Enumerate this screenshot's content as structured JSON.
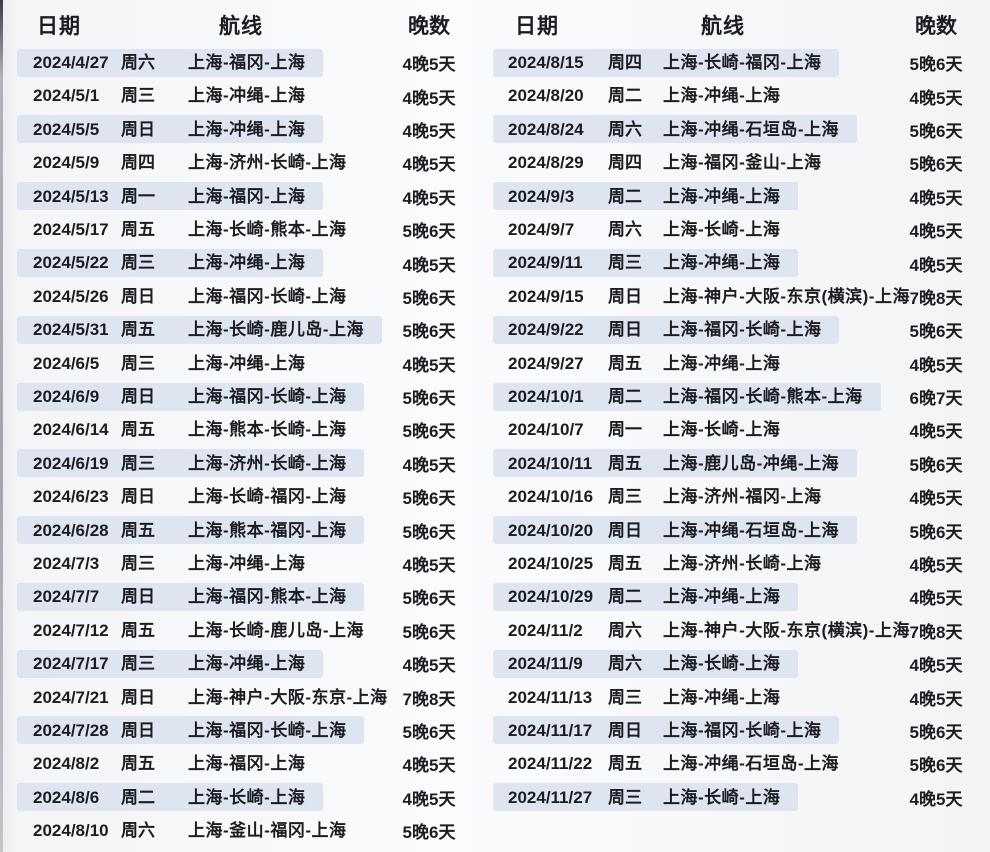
{
  "theme": {
    "background": "#f5f6f8",
    "row_highlight": "#dee4f0",
    "text": "#1c1d22"
  },
  "tables": {
    "left": {
      "headers": {
        "date": "日期",
        "route": "航线",
        "nights": "晚数"
      },
      "rows": [
        {
          "date": "2024/4/27",
          "weekday": "周六",
          "route": "上海-福冈-上海",
          "nights": "4晚5天"
        },
        {
          "date": "2024/5/1",
          "weekday": "周三",
          "route": "上海-冲绳-上海",
          "nights": "4晚5天"
        },
        {
          "date": "2024/5/5",
          "weekday": "周日",
          "route": "上海-冲绳-上海",
          "nights": "4晚5天"
        },
        {
          "date": "2024/5/9",
          "weekday": "周四",
          "route": "上海-济州-长崎-上海",
          "nights": "4晚5天"
        },
        {
          "date": "2024/5/13",
          "weekday": "周一",
          "route": "上海-福冈-上海",
          "nights": "4晚5天"
        },
        {
          "date": "2024/5/17",
          "weekday": "周五",
          "route": "上海-长崎-熊本-上海",
          "nights": "5晚6天"
        },
        {
          "date": "2024/5/22",
          "weekday": "周三",
          "route": "上海-冲绳-上海",
          "nights": "4晚5天"
        },
        {
          "date": "2024/5/26",
          "weekday": "周日",
          "route": "上海-福冈-长崎-上海",
          "nights": "5晚6天"
        },
        {
          "date": "2024/5/31",
          "weekday": "周五",
          "route": "上海-长崎-鹿儿岛-上海",
          "nights": "5晚6天"
        },
        {
          "date": "2024/6/5",
          "weekday": "周三",
          "route": "上海-冲绳-上海",
          "nights": "4晚5天"
        },
        {
          "date": "2024/6/9",
          "weekday": "周日",
          "route": "上海-福冈-长崎-上海",
          "nights": "5晚6天"
        },
        {
          "date": "2024/6/14",
          "weekday": "周五",
          "route": "上海-熊本-长崎-上海",
          "nights": "5晚6天"
        },
        {
          "date": "2024/6/19",
          "weekday": "周三",
          "route": "上海-济州-长崎-上海",
          "nights": "4晚5天"
        },
        {
          "date": "2024/6/23",
          "weekday": "周日",
          "route": "上海-长崎-福冈-上海",
          "nights": "5晚6天"
        },
        {
          "date": "2024/6/28",
          "weekday": "周五",
          "route": "上海-熊本-福冈-上海",
          "nights": "5晚6天"
        },
        {
          "date": "2024/7/3",
          "weekday": "周三",
          "route": "上海-冲绳-上海",
          "nights": "4晚5天"
        },
        {
          "date": "2024/7/7",
          "weekday": "周日",
          "route": "上海-福冈-熊本-上海",
          "nights": "5晚6天"
        },
        {
          "date": "2024/7/12",
          "weekday": "周五",
          "route": "上海-长崎-鹿儿岛-上海",
          "nights": "5晚6天"
        },
        {
          "date": "2024/7/17",
          "weekday": "周三",
          "route": "上海-冲绳-上海",
          "nights": "4晚5天"
        },
        {
          "date": "2024/7/21",
          "weekday": "周日",
          "route": "上海-神户-大阪-东京-上海",
          "nights": "7晚8天"
        },
        {
          "date": "2024/7/28",
          "weekday": "周日",
          "route": "上海-福冈-长崎-上海",
          "nights": "5晚6天"
        },
        {
          "date": "2024/8/2",
          "weekday": "周五",
          "route": "上海-福冈-上海",
          "nights": "4晚5天"
        },
        {
          "date": "2024/8/6",
          "weekday": "周二",
          "route": "上海-长崎-上海",
          "nights": "4晚5天"
        },
        {
          "date": "2024/8/10",
          "weekday": "周六",
          "route": "上海-釜山-福冈-上海",
          "nights": "5晚6天"
        }
      ]
    },
    "right": {
      "headers": {
        "date": "日期",
        "route": "航线",
        "nights": "晚数"
      },
      "rows": [
        {
          "date": "2024/8/15",
          "weekday": "周四",
          "route": "上海-长崎-福冈-上海",
          "nights": "5晚6天"
        },
        {
          "date": "2024/8/20",
          "weekday": "周二",
          "route": "上海-冲绳-上海",
          "nights": "4晚5天"
        },
        {
          "date": "2024/8/24",
          "weekday": "周六",
          "route": "上海-冲绳-石垣岛-上海",
          "nights": "5晚6天"
        },
        {
          "date": "2024/8/29",
          "weekday": "周四",
          "route": "上海-福冈-釜山-上海",
          "nights": "5晚6天"
        },
        {
          "date": "2024/9/3",
          "weekday": "周二",
          "route": "上海-冲绳-上海",
          "nights": "4晚5天"
        },
        {
          "date": "2024/9/7",
          "weekday": "周六",
          "route": "上海-长崎-上海",
          "nights": "4晚5天"
        },
        {
          "date": "2024/9/11",
          "weekday": "周三",
          "route": "上海-冲绳-上海",
          "nights": "4晚5天"
        },
        {
          "date": "2024/9/15",
          "weekday": "周日",
          "route": "上海-神户-大阪-东京(横滨)-上海",
          "nights": "7晚8天"
        },
        {
          "date": "2024/9/22",
          "weekday": "周日",
          "route": "上海-福冈-长崎-上海",
          "nights": "5晚6天"
        },
        {
          "date": "2024/9/27",
          "weekday": "周五",
          "route": "上海-冲绳-上海",
          "nights": "4晚5天"
        },
        {
          "date": "2024/10/1",
          "weekday": "周二",
          "route": "上海-福冈-长崎-熊本-上海",
          "nights": "6晚7天"
        },
        {
          "date": "2024/10/7",
          "weekday": "周一",
          "route": "上海-长崎-上海",
          "nights": "4晚5天"
        },
        {
          "date": "2024/10/11",
          "weekday": "周五",
          "route": "上海-鹿儿岛-冲绳-上海",
          "nights": "5晚6天"
        },
        {
          "date": "2024/10/16",
          "weekday": "周三",
          "route": "上海-济州-福冈-上海",
          "nights": "4晚5天"
        },
        {
          "date": "2024/10/20",
          "weekday": "周日",
          "route": "上海-冲绳-石垣岛-上海",
          "nights": "5晚6天"
        },
        {
          "date": "2024/10/25",
          "weekday": "周五",
          "route": "上海-济州-长崎-上海",
          "nights": "4晚5天"
        },
        {
          "date": "2024/10/29",
          "weekday": "周二",
          "route": "上海-冲绳-上海",
          "nights": "4晚5天"
        },
        {
          "date": "2024/11/2",
          "weekday": "周六",
          "route": "上海-神户-大阪-东京(横滨)-上海",
          "nights": "7晚8天"
        },
        {
          "date": "2024/11/9",
          "weekday": "周六",
          "route": "上海-长崎-上海",
          "nights": "4晚5天"
        },
        {
          "date": "2024/11/13",
          "weekday": "周三",
          "route": "上海-冲绳-上海",
          "nights": "4晚5天"
        },
        {
          "date": "2024/11/17",
          "weekday": "周日",
          "route": "上海-福冈-长崎-上海",
          "nights": "5晚6天"
        },
        {
          "date": "2024/11/22",
          "weekday": "周五",
          "route": "上海-冲绳-石垣岛-上海",
          "nights": "5晚6天"
        },
        {
          "date": "2024/11/27",
          "weekday": "周三",
          "route": "上海-长崎-上海",
          "nights": "4晚5天"
        }
      ]
    }
  }
}
